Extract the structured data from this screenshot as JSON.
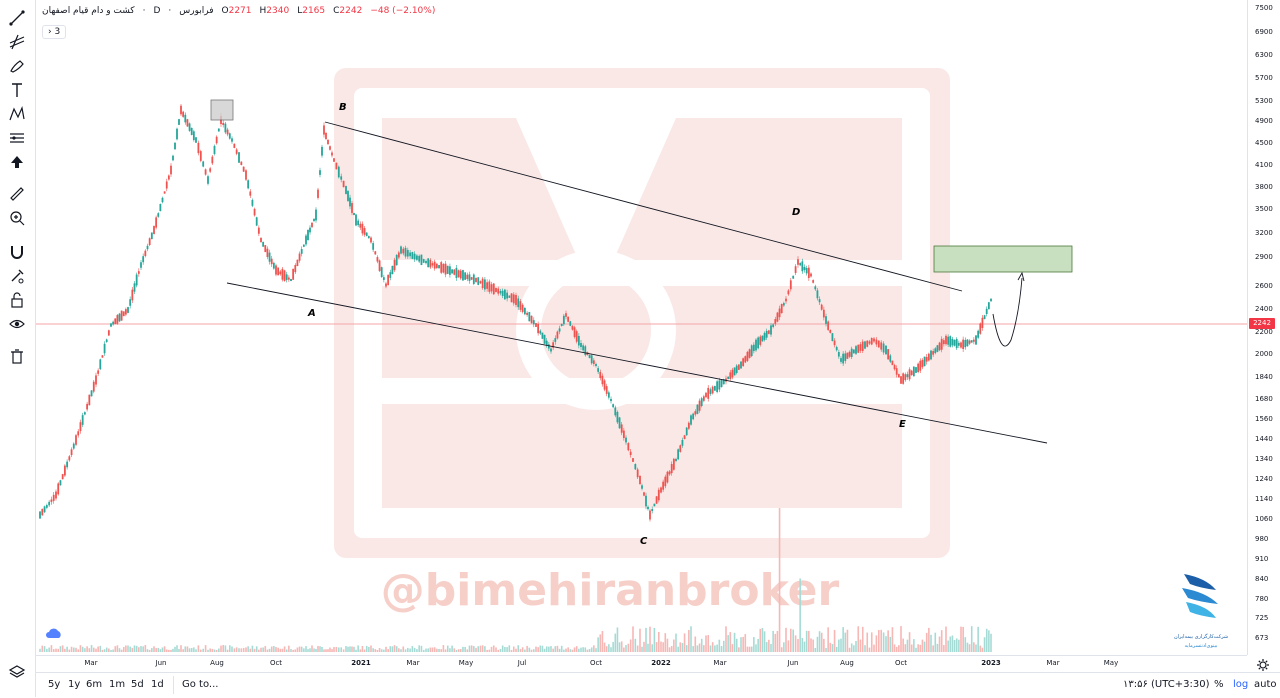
{
  "header": {
    "symbol": "کشت و دام قیام اصفهان",
    "exchange": "فرابورس",
    "interval": "D",
    "open_label": "O",
    "open": "2271",
    "high_label": "H",
    "high": "2340",
    "low_label": "L",
    "low": "2165",
    "close_label": "C",
    "close": "2242",
    "change": "−48 (−2.10%)",
    "indicator_count": "3"
  },
  "price_scale": [
    "7500",
    "6900",
    "6300",
    "5700",
    "5300",
    "4900",
    "4500",
    "4100",
    "3800",
    "3500",
    "3200",
    "2900",
    "2600",
    "2400",
    "2200",
    "2000",
    "1840",
    "1680",
    "1560",
    "1440",
    "1340",
    "1240",
    "1140",
    "1060",
    "980",
    "910",
    "840",
    "780",
    "725",
    "673"
  ],
  "last_price": "2242",
  "time_axis": [
    "Mar",
    "Jun",
    "Aug",
    "Oct",
    "2021",
    "Mar",
    "May",
    "Jul",
    "Oct",
    "2022",
    "Mar",
    "Jun",
    "Aug",
    "Oct",
    "2023",
    "Mar",
    "May"
  ],
  "annotations": {
    "A": "A",
    "B": "B",
    "C": "C",
    "D": "D",
    "E": "E"
  },
  "watermark": "@bimehiranbroker",
  "bottom_bar": {
    "ranges": [
      "5y",
      "1y",
      "6m",
      "1m",
      "5d",
      "1d"
    ],
    "goto": "Go to...",
    "clock": "۱۳:۵۶ (UTC+3:30)",
    "percent": "%",
    "log": "log",
    "auto": "auto"
  },
  "logo_text": [
    "شرکت‌کارگزاری بیمه‌ایران",
    "بینوی‌ادنتسرمایه"
  ],
  "colors": {
    "up": "#26a69a",
    "down": "#ef5350",
    "accent": "#f23645",
    "target_box": "#c8dfc0",
    "watermark": "#f6d6d3"
  }
}
